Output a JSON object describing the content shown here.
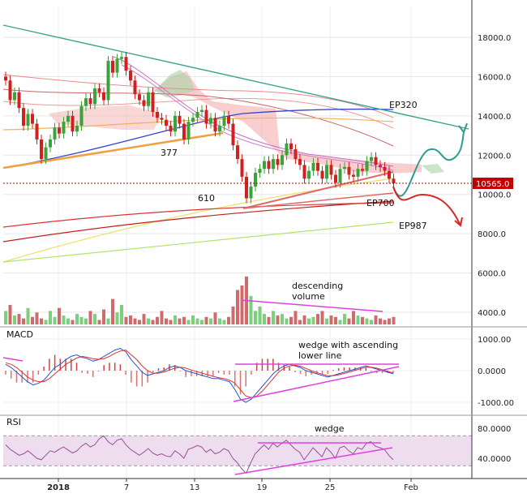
{
  "chart_data": [
    {
      "type": "candlestick",
      "name": "price",
      "ylim": [
        2800,
        19500
      ],
      "yticks": [
        4000,
        6000,
        8000,
        10000,
        12000,
        14000,
        16000,
        18000
      ],
      "ytick_labels": [
        "4000.0",
        "6000.0",
        "8000.0",
        "10000.0",
        "12000.0",
        "14000.0",
        "16000.0",
        "18000.0"
      ],
      "last_price": 10565,
      "last_price_label": "10565.0",
      "colors": {
        "up": "#3aa33a",
        "down": "#d02020",
        "last": "#c00000"
      },
      "closes": [
        15800,
        14800,
        15200,
        14400,
        13500,
        14100,
        13600,
        12800,
        11800,
        12400,
        12800,
        13400,
        13100,
        13700,
        14000,
        13200,
        13500,
        14500,
        14900,
        14600,
        15400,
        15200,
        14800,
        16800,
        16200,
        16900,
        17000,
        16300,
        15800,
        15100,
        14800,
        14500,
        15200,
        14200,
        13900,
        13800,
        13500,
        13200,
        14000,
        13600,
        12800,
        13700,
        13900,
        14200,
        14300,
        13600,
        13900,
        13200,
        13500,
        14000,
        13600,
        12500,
        11800,
        10900,
        9800,
        10400,
        11100,
        11300,
        11700,
        11300,
        11800,
        11500,
        12000,
        12600,
        12300,
        11800,
        11500,
        10800,
        11200,
        11600,
        11200,
        10800,
        11500,
        11000,
        10600,
        11300,
        11400,
        11000,
        10900,
        11300,
        11200,
        11700,
        11900,
        11500,
        11400,
        11200,
        10800,
        10565
      ],
      "annotations": [
        "377",
        "610",
        "EP320",
        "EP700",
        "EP987"
      ],
      "projection_colors": {
        "up": "#2a9d8f",
        "down": "#d62828"
      }
    },
    {
      "type": "bar",
      "name": "volume",
      "ylim": [
        0,
        6500
      ],
      "annotation": "descending\nvolume",
      "values": [
        900,
        1300,
        600,
        700,
        400,
        1100,
        500,
        800,
        400,
        300,
        900,
        500,
        1100,
        600,
        400,
        300,
        700,
        500,
        400,
        900,
        700,
        300,
        1000,
        400,
        1700,
        800,
        1300,
        500,
        600,
        400,
        300,
        700,
        400,
        300,
        500,
        900,
        400,
        300,
        600,
        400,
        500,
        300,
        600,
        400,
        300,
        500,
        400,
        800,
        400,
        300,
        500,
        1200,
        2300,
        2600,
        3200,
        1900,
        900,
        1200,
        700,
        500,
        900,
        600,
        700,
        400,
        500,
        900,
        300,
        600,
        400,
        500,
        700,
        900,
        400,
        600,
        500,
        300,
        700,
        400,
        900,
        600,
        500,
        400,
        300,
        600,
        400,
        300,
        400,
        500
      ]
    },
    {
      "type": "line",
      "name": "macd",
      "ylim": [
        -1300,
        1200
      ],
      "yticks": [
        -1000,
        0,
        1000
      ],
      "ytick_labels": [
        "-1000.00",
        "0.0000",
        "1000.00"
      ],
      "annotation": "wedge with ascending\nlower line",
      "series": [
        {
          "values": [
            200,
            100,
            -50,
            -200,
            -350,
            -450,
            -400,
            -300,
            -100,
            100,
            200,
            350,
            450,
            500,
            420,
            380,
            300,
            350,
            450,
            550,
            650,
            700,
            600,
            350,
            150,
            -50,
            -150,
            -100,
            -50,
            0,
            100,
            150,
            100,
            0,
            -50,
            -100,
            -150,
            -200,
            -250,
            -250,
            -300,
            -350,
            -600,
            -900,
            -1000,
            -900,
            -700,
            -500,
            -300,
            -100,
            50,
            150,
            200,
            150,
            100,
            0,
            -50,
            -100,
            -150,
            -200,
            -150,
            -100,
            -50,
            0,
            50,
            100,
            150,
            100,
            50,
            0,
            -50,
            -100
          ]
        },
        {
          "values": [
            250,
            200,
            100,
            -50,
            -200,
            -300,
            -350,
            -350,
            -250,
            -100,
            50,
            200,
            300,
            400,
            450,
            420,
            380,
            360,
            380,
            450,
            550,
            620,
            650,
            500,
            350,
            150,
            0,
            -80,
            -80,
            -40,
            20,
            80,
            110,
            80,
            20,
            -30,
            -80,
            -130,
            -180,
            -220,
            -250,
            -300,
            -400,
            -600,
            -800,
            -850,
            -800,
            -650,
            -450,
            -250,
            -50,
            80,
            150,
            170,
            140,
            70,
            0,
            -60,
            -110,
            -160,
            -160,
            -130,
            -90,
            -40,
            10,
            60,
            110,
            110,
            80,
            30,
            -20,
            -70
          ]
        }
      ],
      "colors": [
        "#2255cc",
        "#e03030"
      ]
    },
    {
      "type": "line",
      "name": "rsi",
      "ylim": [
        12,
        90
      ],
      "yticks": [
        40,
        80
      ],
      "ytick_labels": [
        "40.0000",
        "80.0000"
      ],
      "band": [
        30,
        70
      ],
      "annotation": "wedge",
      "values": [
        58,
        52,
        48,
        44,
        46,
        50,
        45,
        40,
        38,
        44,
        50,
        48,
        52,
        55,
        51,
        47,
        50,
        56,
        60,
        55,
        58,
        66,
        70,
        62,
        58,
        64,
        66,
        58,
        52,
        48,
        44,
        48,
        53,
        47,
        44,
        46,
        43,
        42,
        50,
        46,
        40,
        52,
        54,
        57,
        55,
        48,
        52,
        46,
        48,
        53,
        50,
        40,
        34,
        26,
        20,
        34,
        46,
        52,
        58,
        52,
        60,
        55,
        60,
        64,
        58,
        52,
        48,
        38,
        46,
        54,
        48,
        42,
        54,
        48,
        40,
        54,
        56,
        50,
        46,
        54,
        52,
        60,
        62,
        56,
        54,
        52,
        44,
        38
      ]
    },
    {
      "type": "axis",
      "name": "time",
      "xtick_labels": [
        "2018",
        "7",
        "13",
        "19",
        "25",
        "Feb"
      ]
    },
    {
      "type": "panels",
      "titles": [
        "MACD",
        "RSI"
      ]
    }
  ]
}
